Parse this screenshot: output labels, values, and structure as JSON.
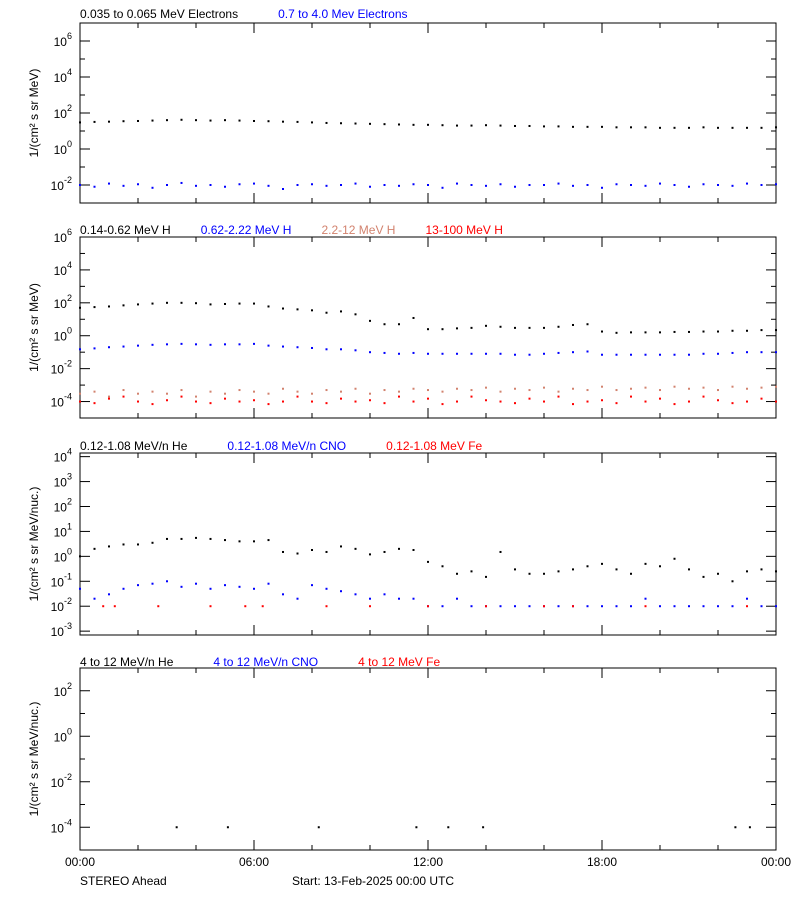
{
  "footer": {
    "left": "STEREO Ahead",
    "center": "Start: 13-Feb-2025 00:00 UTC"
  },
  "chart_data": {
    "type": "scatter",
    "x": [
      "00:00",
      "00:30",
      "01:00",
      "01:30",
      "02:00",
      "02:30",
      "03:00",
      "03:30",
      "04:00",
      "04:30",
      "05:00",
      "05:30",
      "06:00",
      "06:30",
      "07:00",
      "07:30",
      "08:00",
      "08:30",
      "09:00",
      "09:30",
      "10:00",
      "10:30",
      "11:00",
      "11:30",
      "12:00",
      "12:30",
      "13:00",
      "13:30",
      "14:00",
      "14:30",
      "15:00",
      "15:30",
      "16:00",
      "16:30",
      "17:00",
      "17:30",
      "18:00",
      "18:30",
      "19:00",
      "19:30",
      "20:00",
      "20:30",
      "21:00",
      "21:30",
      "22:00",
      "22:30",
      "23:00",
      "23:30",
      "24:00"
    ],
    "xtick_labels": [
      "00:00",
      "06:00",
      "12:00",
      "18:00",
      "00:00"
    ],
    "xlim": [
      "00:00",
      "24:00"
    ],
    "yscale": "log",
    "panels": [
      {
        "ylabel": "1/(cm² s sr MeV)",
        "ylim": [
          0.001,
          10000000
        ],
        "ytick_exponents": [
          -2,
          0,
          2,
          4,
          6
        ],
        "series": [
          {
            "name": "0.035 to 0.065 MeV Electrons",
            "color": "#000000",
            "values": [
              30,
              32,
              33,
              35,
              36,
              38,
              40,
              42,
              40,
              38,
              40,
              38,
              36,
              35,
              33,
              32,
              30,
              28,
              27,
              26,
              25,
              24,
              23,
              22,
              22,
              21,
              20,
              20,
              21,
              20,
              19,
              19,
              18,
              18,
              17,
              17,
              17,
              16,
              16,
              16,
              15,
              15,
              15,
              16,
              15,
              15,
              15,
              15,
              16
            ]
          },
          {
            "name": "0.7 to 4.0 Mev Electrons",
            "color": "#0000ff",
            "values": [
              0.01,
              0.008,
              0.012,
              0.009,
              0.011,
              0.007,
              0.01,
              0.013,
              0.009,
              0.01,
              0.008,
              0.011,
              0.012,
              0.009,
              0.006,
              0.01,
              0.011,
              0.009,
              0.01,
              0.012,
              0.008,
              0.01,
              0.009,
              0.011,
              0.01,
              0.007,
              0.012,
              0.01,
              0.009,
              0.011,
              0.008,
              0.01,
              0.01,
              0.012,
              0.009,
              0.01,
              0.007,
              0.011,
              0.01,
              0.009,
              0.012,
              0.01,
              0.008,
              0.011,
              0.01,
              0.009,
              0.012,
              0.01,
              0.011
            ]
          }
        ]
      },
      {
        "ylabel": "1/(cm² s sr MeV)",
        "ylim": [
          1e-05,
          1000000
        ],
        "ytick_exponents": [
          -4,
          -2,
          0,
          2,
          4,
          6
        ],
        "series": [
          {
            "name": "0.14-0.62 MeV H",
            "color": "#000000",
            "values": [
              50,
              55,
              60,
              70,
              80,
              90,
              100,
              100,
              95,
              80,
              85,
              90,
              90,
              60,
              45,
              40,
              35,
              25,
              30,
              20,
              8,
              5,
              5,
              12,
              2.5,
              2.5,
              2.8,
              3,
              4,
              3.5,
              3,
              3,
              3,
              3.5,
              4.5,
              5,
              1.8,
              1.5,
              1.6,
              1.6,
              1.6,
              1.7,
              1.7,
              1.8,
              1.8,
              2,
              2,
              2.2,
              2.2
            ]
          },
          {
            "name": "0.62-2.22 MeV H",
            "color": "#0000ff",
            "values": [
              0.15,
              0.17,
              0.2,
              0.22,
              0.25,
              0.28,
              0.3,
              0.32,
              0.3,
              0.28,
              0.3,
              0.3,
              0.32,
              0.25,
              0.22,
              0.2,
              0.18,
              0.15,
              0.15,
              0.13,
              0.1,
              0.09,
              0.08,
              0.09,
              0.08,
              0.08,
              0.08,
              0.08,
              0.08,
              0.08,
              0.07,
              0.07,
              0.08,
              0.09,
              0.1,
              0.11,
              0.07,
              0.07,
              0.07,
              0.07,
              0.07,
              0.07,
              0.07,
              0.08,
              0.08,
              0.09,
              0.1,
              0.1,
              0.1
            ]
          },
          {
            "name": "2.2-12 MeV H",
            "color": "#d2826e",
            "values": [
              0.0003,
              0.0004,
              0.0002,
              0.0005,
              0.0003,
              0.0004,
              0.0003,
              0.0005,
              0.0002,
              0.0004,
              0.0003,
              0.0005,
              0.0004,
              0.0003,
              0.0006,
              0.0004,
              0.0003,
              0.0005,
              0.0004,
              0.0006,
              0.0003,
              0.0005,
              0.0004,
              0.0006,
              0.0005,
              0.0004,
              0.0006,
              0.0005,
              0.0007,
              0.0004,
              0.0006,
              0.0005,
              0.0007,
              0.0004,
              0.0006,
              0.0005,
              0.0008,
              0.0005,
              0.0006,
              0.0007,
              0.0005,
              0.0008,
              0.0006,
              0.0007,
              0.0005,
              0.0008,
              0.0006,
              0.0007,
              0.0008
            ]
          },
          {
            "name": "13-100 MeV H",
            "color": "#ff0000",
            "values": [
              0.0001,
              8e-05,
              0.00015,
              0.0002,
              0.0001,
              7e-05,
              0.00012,
              0.0002,
              0.0001,
              8e-05,
              0.00015,
              0.0001,
              0.00012,
              7e-05,
              0.0001,
              0.0002,
              0.0001,
              8e-05,
              0.00015,
              0.0001,
              0.00012,
              8e-05,
              0.0002,
              0.0001,
              0.00015,
              7e-05,
              0.0001,
              0.0002,
              0.00012,
              0.0001,
              8e-05,
              0.00015,
              0.0001,
              0.0002,
              7e-05,
              0.0001,
              0.00012,
              8e-05,
              0.0002,
              0.0001,
              0.00015,
              7e-05,
              0.0001,
              0.0002,
              0.00012,
              8e-05,
              0.0001,
              0.00015,
              0.0001
            ]
          }
        ]
      },
      {
        "ylabel": "1/(cm² s sr MeV/nuc.)",
        "ylim": [
          0.0007,
          14000
        ],
        "ytick_exponents": [
          -3,
          -2,
          -1,
          0,
          1,
          2,
          3,
          4
        ],
        "series": [
          {
            "name": "0.12-1.08 MeV/n He",
            "color": "#000000",
            "values": [
              1,
              2,
              2.5,
              3,
              3,
              3.5,
              5,
              5,
              5.5,
              5,
              4.5,
              4,
              4,
              4.5,
              1.5,
              1.3,
              1.8,
              1.5,
              2.5,
              2,
              1.2,
              1.5,
              2,
              1.8,
              0.6,
              0.4,
              0.2,
              0.25,
              0.15,
              1.5,
              0.3,
              0.2,
              0.2,
              0.25,
              0.3,
              0.4,
              0.5,
              0.3,
              0.2,
              0.5,
              0.4,
              0.8,
              0.3,
              0.15,
              0.2,
              0.1,
              0.25,
              0.3,
              0.25
            ]
          },
          {
            "name": "0.12-1.08 MeV/n CNO",
            "color": "#0000ff",
            "values": [
              0.05,
              0.02,
              0.03,
              0.05,
              0.07,
              0.08,
              0.1,
              0.06,
              0.08,
              0.05,
              0.07,
              0.06,
              0.05,
              0.08,
              0.03,
              0.02,
              0.07,
              0.05,
              0.04,
              0.03,
              0.02,
              0.03,
              0.02,
              0.02,
              0.01,
              0.01,
              0.02,
              0.01,
              0.01,
              0.01,
              0.01,
              0.01,
              0.01,
              0.01,
              0.01,
              0.01,
              0.01,
              0.01,
              0.01,
              0.02,
              0.01,
              0.01,
              0.01,
              0.01,
              0.01,
              0.01,
              0.02,
              0.01,
              0.01
            ]
          },
          {
            "name": "0.12-1.08 MeV Fe",
            "color": "#ff0000",
            "points": [
              [
                "00:48",
                0.01
              ],
              [
                "01:12",
                0.01
              ],
              [
                "02:42",
                0.01
              ],
              [
                "04:30",
                0.01
              ],
              [
                "05:42",
                0.01
              ],
              [
                "06:18",
                0.01
              ],
              [
                "08:30",
                0.01
              ],
              [
                "10:00",
                0.01
              ],
              [
                "12:00",
                0.01
              ],
              [
                "14:00",
                0.01
              ],
              [
                "16:00",
                0.01
              ],
              [
                "17:00",
                0.01
              ],
              [
                "19:30",
                0.01
              ],
              [
                "23:00",
                0.01
              ]
            ]
          }
        ]
      },
      {
        "ylabel": "1/(cm² s sr MeV/nuc.)",
        "ylim": [
          1e-05,
          1000
        ],
        "ytick_exponents": [
          -4,
          -2,
          0,
          2
        ],
        "series": [
          {
            "name": "4 to 12 MeV/n He",
            "color": "#000000",
            "points": [
              [
                "03:20",
                0.0001
              ],
              [
                "05:06",
                0.0001
              ],
              [
                "08:14",
                0.0001
              ],
              [
                "11:36",
                0.0001
              ],
              [
                "12:42",
                0.0001
              ],
              [
                "13:54",
                0.0001
              ],
              [
                "22:36",
                0.0001
              ],
              [
                "23:06",
                0.0001
              ]
            ]
          },
          {
            "name": "4 to 12 MeV/n CNO",
            "color": "#0000ff",
            "points": []
          },
          {
            "name": "4 to 12 MeV Fe",
            "color": "#ff0000",
            "points": []
          }
        ]
      }
    ]
  }
}
